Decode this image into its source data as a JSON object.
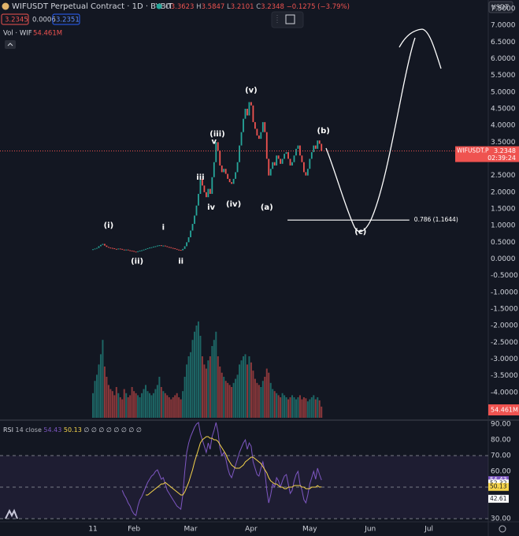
{
  "header": {
    "symbol": "WIFUSDT Perpetual Contract · 1D · BYBIT",
    "ohlc": [
      {
        "k": "O",
        "v": "3.3623"
      },
      {
        "k": "H",
        "v": "3.5847"
      },
      {
        "k": "L",
        "v": "3.2101"
      },
      {
        "k": "C",
        "v": "3.2348"
      }
    ],
    "change": "−0.1275 (−3.79%)",
    "sell": "3.2345",
    "spread": "0.0006",
    "buy": "3.2351",
    "currency": "USDT"
  },
  "chart_data": [
    {
      "type": "candlestick",
      "title": "WIFUSDT Perpetual Contract · 1D · BYBIT",
      "x": [
        11,
        12,
        13,
        14,
        15,
        16,
        17,
        18,
        19,
        20,
        21,
        22,
        23,
        24,
        25,
        26,
        27,
        28,
        29,
        30,
        31,
        32,
        33,
        34,
        35,
        36,
        37,
        38,
        39,
        40,
        41,
        42,
        43,
        44,
        45,
        46,
        47,
        48,
        49,
        50,
        51,
        52,
        53,
        54,
        55,
        56,
        57,
        58,
        59,
        60,
        61,
        62,
        63,
        64,
        65,
        66,
        67,
        68,
        69,
        70,
        71,
        72,
        73,
        74,
        75,
        76,
        77,
        78,
        79,
        80,
        81,
        82,
        83,
        84,
        85,
        86,
        87,
        88,
        89,
        90,
        91,
        92,
        93,
        94,
        95,
        96,
        97,
        98,
        99,
        100,
        101,
        102,
        103,
        104,
        105,
        106,
        107,
        108,
        109,
        110,
        111,
        112,
        113,
        114,
        115,
        116,
        117,
        118,
        119,
        120,
        121,
        122,
        123,
        124,
        125,
        126,
        127,
        128
      ],
      "series": [
        {
          "name": "WIFUSDT.P",
          "up_color": "#26a69a",
          "down_color": "#ef5350",
          "last_label": "3.2348",
          "countdown": "02:39:24",
          "values": [
            0.29,
            0.31,
            0.33,
            0.38,
            0.42,
            0.45,
            0.4,
            0.36,
            0.34,
            0.33,
            0.32,
            0.3,
            0.29,
            0.31,
            0.3,
            0.28,
            0.27,
            0.28,
            0.26,
            0.25,
            0.24,
            0.22,
            0.21,
            0.23,
            0.25,
            0.26,
            0.28,
            0.3,
            0.32,
            0.34,
            0.35,
            0.37,
            0.38,
            0.4,
            0.41,
            0.39,
            0.4,
            0.38,
            0.36,
            0.35,
            0.33,
            0.32,
            0.3,
            0.28,
            0.27,
            0.26,
            0.3,
            0.38,
            0.5,
            0.65,
            0.85,
            1.05,
            1.3,
            1.6,
            1.95,
            2.4,
            2.2,
            2.0,
            1.85,
            2.1,
            1.95,
            2.45,
            2.9,
            3.5,
            3.25,
            2.8,
            2.6,
            2.7,
            2.55,
            2.4,
            2.3,
            2.25,
            2.4,
            2.6,
            2.9,
            3.4,
            3.8,
            4.2,
            4.5,
            4.3,
            4.7,
            4.6,
            4.1,
            3.9,
            3.7,
            3.6,
            3.8,
            4.1,
            3.8,
            3.0,
            2.5,
            2.7,
            2.9,
            2.8,
            3.1,
            3.0,
            2.85,
            3.0,
            3.15,
            3.2,
            3.0,
            2.8,
            2.9,
            3.1,
            3.3,
            3.4,
            3.1,
            2.9,
            2.6,
            2.5,
            2.7,
            3.0,
            3.2,
            3.4,
            3.3,
            3.55,
            3.45,
            3.2348
          ]
        },
        {
          "name": "Vol · WIF",
          "last_label": "54.461M",
          "ylim": [
            0,
            500
          ],
          "values": [
            120,
            180,
            210,
            260,
            310,
            380,
            250,
            200,
            160,
            140,
            130,
            110,
            150,
            120,
            100,
            90,
            140,
            120,
            100,
            110,
            150,
            130,
            120,
            110,
            100,
            120,
            140,
            160,
            130,
            120,
            110,
            120,
            140,
            160,
            200,
            150,
            130,
            120,
            110,
            100,
            90,
            100,
            110,
            120,
            100,
            90,
            130,
            200,
            260,
            300,
            320,
            380,
            420,
            450,
            470,
            400,
            300,
            260,
            240,
            280,
            300,
            350,
            380,
            420,
            300,
            250,
            220,
            200,
            180,
            170,
            160,
            150,
            170,
            190,
            210,
            260,
            280,
            300,
            310,
            260,
            300,
            270,
            230,
            190,
            170,
            160,
            150,
            180,
            200,
            240,
            220,
            170,
            140,
            130,
            120,
            110,
            100,
            120,
            110,
            100,
            90,
            100,
            110,
            100,
            90,
            100,
            110,
            90,
            100,
            95,
            80,
            90,
            100,
            110,
            90,
            100,
            85,
            54.461
          ]
        }
      ],
      "xlim": [
        -36.6,
        213.4
      ],
      "xticks": [
        {
          "value": 11,
          "label": "11"
        },
        {
          "value": 32,
          "label": "Feb"
        },
        {
          "value": 61,
          "label": "Mar"
        },
        {
          "value": 92,
          "label": "Apr"
        },
        {
          "value": 122,
          "label": "May"
        },
        {
          "value": 153,
          "label": "Jun"
        },
        {
          "value": 183,
          "label": "Jul"
        }
      ],
      "ylim": [
        -4.5,
        7.5
      ],
      "yticks": [
        {
          "value": 7.5,
          "label": "7.5000"
        },
        {
          "value": 7,
          "label": "7.0000"
        },
        {
          "value": 6.5,
          "label": "6.5000"
        },
        {
          "value": 6,
          "label": "6.0000"
        },
        {
          "value": 5.5,
          "label": "5.5000"
        },
        {
          "value": 5,
          "label": "5.0000"
        },
        {
          "value": 4.5,
          "label": "4.5000"
        },
        {
          "value": 4,
          "label": "4.0000"
        },
        {
          "value": 3.5,
          "label": "3.5000"
        },
        {
          "value": 2.5,
          "label": "2.5000"
        },
        {
          "value": 2,
          "label": "2.0000"
        },
        {
          "value": 1.5,
          "label": "1.5000"
        },
        {
          "value": 1,
          "label": "1.0000"
        },
        {
          "value": 0.5,
          "label": "0.5000"
        },
        {
          "value": 0,
          "label": "0.0000"
        },
        {
          "value": -0.5,
          "label": "-0.5000"
        },
        {
          "value": -1,
          "label": "-1.0000"
        },
        {
          "value": -1.5,
          "label": "-1.5000"
        },
        {
          "value": -2,
          "label": "-2.0000"
        },
        {
          "value": -2.5,
          "label": "-2.5000"
        },
        {
          "value": -3,
          "label": "-3.0000"
        },
        {
          "value": -3.5,
          "label": "-3.5000"
        },
        {
          "value": -4,
          "label": "-4.0000"
        }
      ],
      "annotations": [
        {
          "text": "(i)",
          "x": 19,
          "y": 1.0
        },
        {
          "text": "(ii)",
          "x": 33.6,
          "y": -0.07
        },
        {
          "text": "i",
          "x": 47,
          "y": 0.95
        },
        {
          "text": "ii",
          "x": 56,
          "y": -0.07
        },
        {
          "text": "iii",
          "x": 66,
          "y": 2.45
        },
        {
          "text": "iv",
          "x": 71.5,
          "y": 1.55
        },
        {
          "text": "v",
          "x": 73,
          "y": 3.52
        },
        {
          "text": "(iii)",
          "x": 74.7,
          "y": 3.75
        },
        {
          "text": "(iv)",
          "x": 83,
          "y": 1.64
        },
        {
          "text": "(v)",
          "x": 92,
          "y": 5.05
        },
        {
          "text": "(a)",
          "x": 100,
          "y": 1.55
        },
        {
          "text": "(b)",
          "x": 129,
          "y": 3.84
        },
        {
          "text": "(c)",
          "x": 148,
          "y": 0.81
        }
      ],
      "fib": {
        "label": "0.786 (1.1644)",
        "value": 1.1644,
        "x": [
          110.6,
          173
        ]
      }
    },
    {
      "type": "line",
      "title": "RSI",
      "subtitle": "14 close",
      "placeholders": "∅ ∅ ∅ ∅ ∅ ∅ ∅ ∅",
      "x": [
        11,
        12,
        13,
        14,
        15,
        16,
        17,
        18,
        19,
        20,
        21,
        22,
        23,
        24,
        25,
        26,
        27,
        28,
        29,
        30,
        31,
        32,
        33,
        34,
        35,
        36,
        37,
        38,
        39,
        40,
        41,
        42,
        43,
        44,
        45,
        46,
        47,
        48,
        49,
        50,
        51,
        52,
        53,
        54,
        55,
        56,
        57,
        58,
        59,
        60,
        61,
        62,
        63,
        64,
        65,
        66,
        67,
        68,
        69,
        70,
        71,
        72,
        73,
        74,
        75,
        76,
        77,
        78,
        79,
        80,
        81,
        82,
        83,
        84,
        85,
        86,
        87,
        88,
        89,
        90,
        91,
        92,
        93,
        94,
        95,
        96,
        97,
        98,
        99,
        100,
        101,
        102,
        103,
        104,
        105,
        106,
        107,
        108,
        109,
        110,
        111,
        112,
        113,
        114,
        115,
        116,
        117,
        118,
        119,
        120,
        121,
        122,
        123,
        124,
        125,
        126,
        127,
        128
      ],
      "series": [
        {
          "color": "#7e57c2",
          "last_label": "54.43",
          "values": [
            null,
            null,
            null,
            null,
            null,
            null,
            null,
            null,
            null,
            null,
            null,
            null,
            null,
            null,
            null,
            48,
            45,
            43,
            40,
            38,
            35,
            33,
            32,
            38,
            42,
            44,
            47,
            50,
            53,
            55,
            57,
            58,
            60,
            61,
            58,
            55,
            56,
            52,
            48,
            46,
            44,
            42,
            40,
            38,
            37,
            36,
            45,
            60,
            72,
            78,
            82,
            85,
            88,
            90,
            91,
            84,
            80,
            76,
            72,
            78,
            74,
            82,
            86,
            91,
            85,
            75,
            70,
            72,
            68,
            62,
            58,
            56,
            60,
            64,
            68,
            72,
            75,
            78,
            80,
            74,
            78,
            76,
            66,
            62,
            58,
            57,
            62,
            66,
            60,
            48,
            40,
            45,
            52,
            50,
            56,
            54,
            50,
            54,
            57,
            58,
            52,
            46,
            48,
            54,
            58,
            60,
            52,
            48,
            42,
            40,
            45,
            52,
            56,
            60,
            55,
            62,
            58,
            54.43
          ]
        },
        {
          "color": "#f7d54b",
          "last_label": "50.13",
          "values": [
            null,
            null,
            null,
            null,
            null,
            null,
            null,
            null,
            null,
            null,
            null,
            null,
            null,
            null,
            null,
            null,
            null,
            null,
            null,
            null,
            null,
            null,
            null,
            null,
            null,
            null,
            null,
            45,
            45,
            46,
            47,
            48,
            49,
            50,
            51,
            52,
            52,
            53,
            52,
            51,
            50,
            49,
            48,
            47,
            46,
            45,
            45,
            47,
            50,
            53,
            57,
            61,
            66,
            70,
            74,
            78,
            80,
            81,
            82,
            82,
            81,
            81,
            80,
            80,
            79,
            77,
            75,
            73,
            71,
            68,
            66,
            64,
            63,
            62,
            62,
            62,
            63,
            64,
            66,
            67,
            68,
            69,
            69,
            68,
            67,
            66,
            65,
            63,
            61,
            59,
            56,
            54,
            53,
            52,
            52,
            51,
            50,
            50,
            49,
            49,
            50,
            50,
            50,
            51,
            51,
            51,
            51,
            50,
            50,
            49,
            49,
            49,
            50,
            50,
            50,
            51,
            50,
            50.13
          ]
        }
      ],
      "xlim": [
        -36.6,
        213.4
      ],
      "ylim": [
        30,
        90
      ],
      "yticks": [
        {
          "value": 90,
          "label": "90.00"
        },
        {
          "value": 80,
          "label": "80.00"
        },
        {
          "value": 70,
          "label": "70.00"
        },
        {
          "value": 60,
          "label": "60.00"
        },
        {
          "value": 30,
          "label": "30.00"
        }
      ],
      "bands": [
        70,
        50,
        30
      ],
      "markers": [
        {
          "value": 54.43,
          "label": "54.43",
          "color": "#7e57c2"
        },
        {
          "value": 52.32,
          "label": "52.32",
          "color": "#d1d4dc"
        },
        {
          "value": 50.13,
          "label": "50.13",
          "color": "#f7d54b"
        },
        {
          "value": 42.61,
          "label": "42.61",
          "color": "#d1d4dc"
        }
      ]
    }
  ]
}
